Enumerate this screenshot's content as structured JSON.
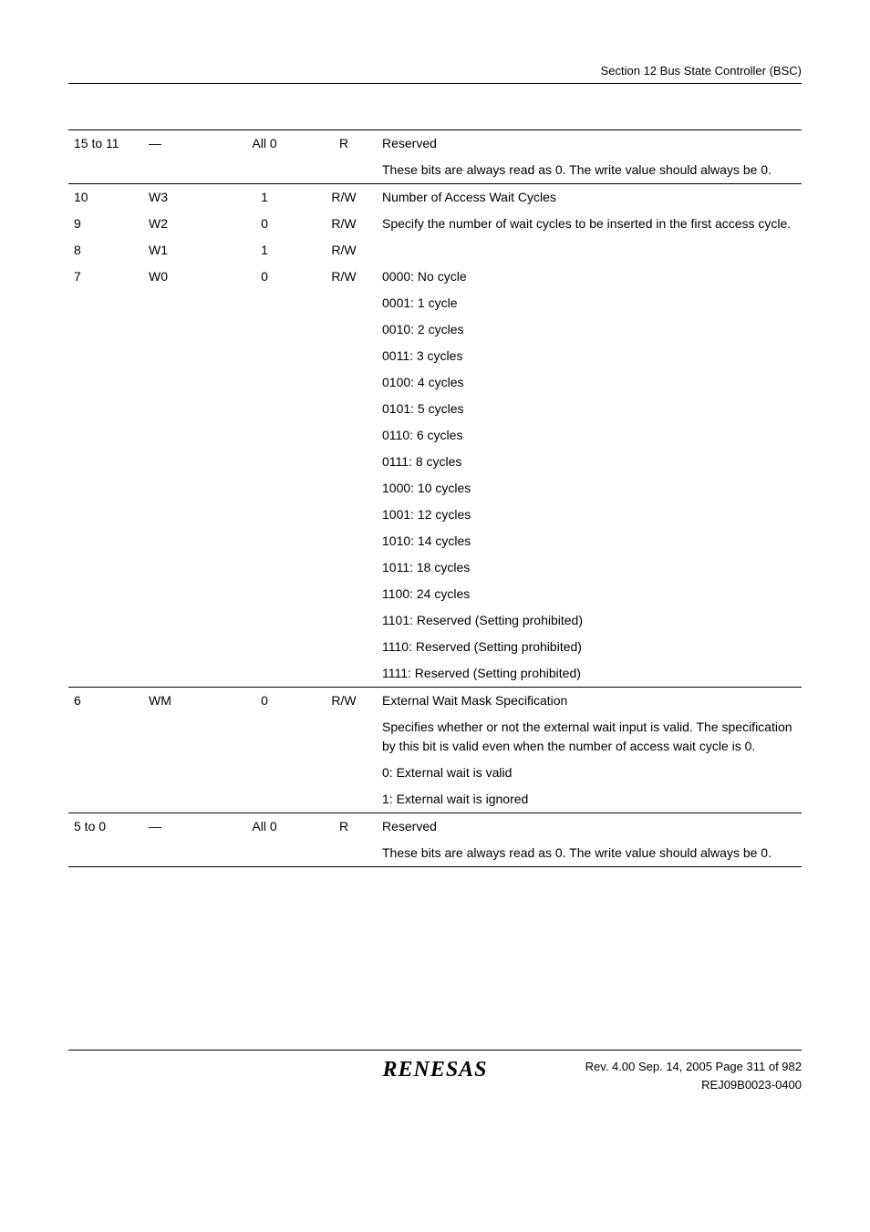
{
  "header": {
    "section": "Section 12   Bus State Controller (BSC)"
  },
  "rows": [
    {
      "bit": "15 to 11",
      "name": "—",
      "init": "All 0",
      "rw": "R",
      "desc": "Reserved",
      "top": true
    },
    {
      "bit": "",
      "name": "",
      "init": "",
      "rw": "",
      "desc": "These bits are always read as 0. The write value should always be 0."
    },
    {
      "bit": "10",
      "name": "W3",
      "init": "1",
      "rw": "R/W",
      "desc": "Number of Access Wait Cycles",
      "top": true
    },
    {
      "bit": "9",
      "name": "W2",
      "init": "0",
      "rw": "R/W",
      "desc": "Specify the number of wait cycles to be inserted in the first access cycle."
    },
    {
      "bit": "8",
      "name": "W1",
      "init": "1",
      "rw": "R/W",
      "desc": ""
    },
    {
      "bit": "7",
      "name": "W0",
      "init": "0",
      "rw": "R/W",
      "desc": "0000: No cycle"
    },
    {
      "bit": "",
      "name": "",
      "init": "",
      "rw": "",
      "desc": "0001: 1 cycle"
    },
    {
      "bit": "",
      "name": "",
      "init": "",
      "rw": "",
      "desc": "0010: 2 cycles"
    },
    {
      "bit": "",
      "name": "",
      "init": "",
      "rw": "",
      "desc": "0011: 3 cycles"
    },
    {
      "bit": "",
      "name": "",
      "init": "",
      "rw": "",
      "desc": "0100: 4 cycles"
    },
    {
      "bit": "",
      "name": "",
      "init": "",
      "rw": "",
      "desc": "0101: 5 cycles"
    },
    {
      "bit": "",
      "name": "",
      "init": "",
      "rw": "",
      "desc": "0110: 6 cycles"
    },
    {
      "bit": "",
      "name": "",
      "init": "",
      "rw": "",
      "desc": "0111: 8 cycles"
    },
    {
      "bit": "",
      "name": "",
      "init": "",
      "rw": "",
      "desc": "1000: 10 cycles"
    },
    {
      "bit": "",
      "name": "",
      "init": "",
      "rw": "",
      "desc": "1001: 12 cycles"
    },
    {
      "bit": "",
      "name": "",
      "init": "",
      "rw": "",
      "desc": "1010: 14 cycles"
    },
    {
      "bit": "",
      "name": "",
      "init": "",
      "rw": "",
      "desc": "1011: 18 cycles"
    },
    {
      "bit": "",
      "name": "",
      "init": "",
      "rw": "",
      "desc": "1100: 24 cycles"
    },
    {
      "bit": "",
      "name": "",
      "init": "",
      "rw": "",
      "desc": "1101: Reserved (Setting prohibited)"
    },
    {
      "bit": "",
      "name": "",
      "init": "",
      "rw": "",
      "desc": "1110: Reserved (Setting prohibited)"
    },
    {
      "bit": "",
      "name": "",
      "init": "",
      "rw": "",
      "desc": "1111: Reserved (Setting prohibited)"
    },
    {
      "bit": "6",
      "name": "WM",
      "init": "0",
      "rw": "R/W",
      "desc": "External Wait Mask Specification",
      "top": true
    },
    {
      "bit": "",
      "name": "",
      "init": "",
      "rw": "",
      "desc": "Specifies whether or not the external wait input is valid. The specification by this bit is valid even when the number of access wait cycle is 0."
    },
    {
      "bit": "",
      "name": "",
      "init": "",
      "rw": "",
      "desc": "0: External wait is valid"
    },
    {
      "bit": "",
      "name": "",
      "init": "",
      "rw": "",
      "desc": "1: External wait is ignored"
    },
    {
      "bit": "5 to 0",
      "name": "—",
      "init": "All 0",
      "rw": "R",
      "desc": "Reserved",
      "top": true
    },
    {
      "bit": "",
      "name": "",
      "init": "",
      "rw": "",
      "desc": "These bits are always read as 0. The write value should always be 0.",
      "bottom": true
    }
  ],
  "footer": {
    "logo": "RENESAS",
    "rev": "Rev. 4.00  Sep. 14, 2005  Page 311 of 982",
    "doc": "REJ09B0023-0400"
  }
}
